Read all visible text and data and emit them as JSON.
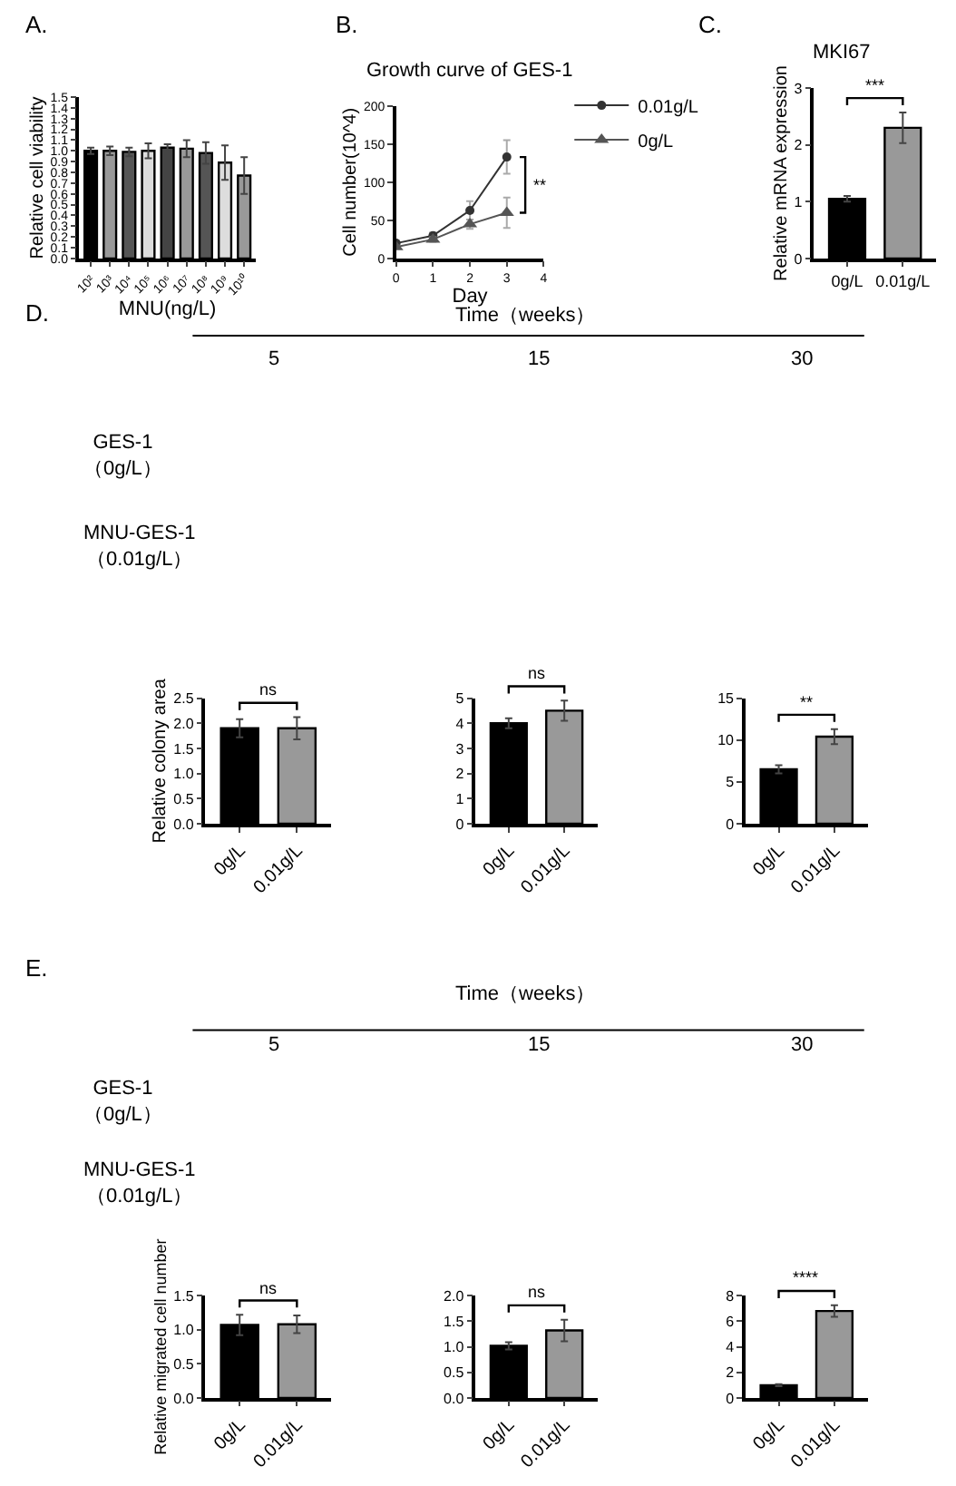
{
  "chart_data": [
    {
      "type": "bar",
      "xlabel": "MNU(ng/L)",
      "ylabel": "Relative cell viability",
      "categories": [
        "10²",
        "10³",
        "10⁴",
        "10⁵",
        "10⁶",
        "10⁷",
        "10⁸",
        "10⁹",
        "10¹⁰"
      ],
      "values": [
        1.0,
        1.0,
        0.99,
        1.0,
        1.03,
        1.02,
        0.98,
        0.89,
        0.77
      ],
      "errors": [
        0.03,
        0.04,
        0.04,
        0.07,
        0.03,
        0.08,
        0.1,
        0.16,
        0.17
      ],
      "colors": [
        "#000000",
        "#999999",
        "#555555",
        "#dddddd",
        "#444444",
        "#999999",
        "#555555",
        "#dddddd",
        "#999999"
      ],
      "ylim": [
        0,
        1.5
      ],
      "yticks": [
        {
          "value": 0,
          "label": "0.0"
        },
        {
          "value": 0.1,
          "label": "0.1"
        },
        {
          "value": 0.2,
          "label": "0.2"
        },
        {
          "value": 0.3,
          "label": "0.3"
        },
        {
          "value": 0.4,
          "label": "0.4"
        },
        {
          "value": 0.5,
          "label": "0.5"
        },
        {
          "value": 0.6,
          "label": "0.6"
        },
        {
          "value": 0.7,
          "label": "0.7"
        },
        {
          "value": 0.8,
          "label": "0.8"
        },
        {
          "value": 0.9,
          "label": "0.9"
        },
        {
          "value": 1,
          "label": "1.0"
        },
        {
          "value": 1.1,
          "label": "1.1"
        },
        {
          "value": 1.2,
          "label": "1.2"
        },
        {
          "value": 1.3,
          "label": "1.3"
        },
        {
          "value": 1.4,
          "label": "1.4"
        },
        {
          "value": 1.5,
          "label": "1.5"
        }
      ],
      "annotations": [
        "A."
      ]
    },
    {
      "type": "line",
      "title": "Growth curve of GES-1",
      "xlabel": "Day",
      "ylabel": "Cell number(10^4)",
      "x": [
        0,
        1,
        2,
        3
      ],
      "series": [
        {
          "name": "0.01g/L",
          "color": "#333333",
          "marker": "circle",
          "values": [
            20,
            30,
            63,
            133
          ],
          "errors": [
            3,
            4,
            12,
            22
          ]
        },
        {
          "name": "0g/L",
          "color": "#555555",
          "marker": "triangle",
          "values": [
            15,
            25,
            45,
            60
          ],
          "errors": [
            2,
            3,
            6,
            20
          ]
        }
      ],
      "xlim": [
        0,
        4
      ],
      "xticks": [
        0,
        1,
        2,
        3,
        4
      ],
      "ylim": [
        0,
        200
      ],
      "yticks": [
        0,
        50,
        100,
        150,
        200
      ],
      "legend": "top right",
      "annotations": [
        "B.",
        "**"
      ]
    },
    {
      "type": "bar",
      "title": "MKI67",
      "ylabel": "Relative mRNA expression",
      "categories": [
        "0g/L",
        "0.01g/L"
      ],
      "values": [
        1.05,
        2.3
      ],
      "errors": [
        0.05,
        0.27
      ],
      "colors": [
        "#000000",
        "#999999"
      ],
      "ylim": [
        0,
        3
      ],
      "yticks": [
        0,
        1,
        2,
        3
      ],
      "annotations": [
        "C.",
        "***"
      ]
    },
    {
      "type": "bar",
      "ylabel": "Relative colony area",
      "categories": [
        "0g/L",
        "0.01g/L"
      ],
      "values": [
        1.9,
        1.9
      ],
      "errors": [
        0.18,
        0.22
      ],
      "colors": [
        "#000000",
        "#999999"
      ],
      "ylim": [
        0,
        2.5
      ],
      "yticks": [
        {
          "value": 0,
          "label": "0.0"
        },
        {
          "value": 0.5,
          "label": "0.5"
        },
        {
          "value": 1,
          "label": "1.0"
        },
        {
          "value": 1.5,
          "label": "1.5"
        },
        {
          "value": 2,
          "label": "2.0"
        },
        {
          "value": 2.5,
          "label": "2.5"
        }
      ],
      "annotations": [
        "D.",
        "Time（weeks）",
        "5",
        "15",
        "30",
        "GES-1\n（0g/L）",
        "MNU-GES-1\n（0.01g/L）",
        "ns"
      ]
    },
    {
      "type": "bar",
      "categories": [
        "0g/L",
        "0.01g/L"
      ],
      "values": [
        4.0,
        4.5
      ],
      "errors": [
        0.2,
        0.4
      ],
      "colors": [
        "#000000",
        "#999999"
      ],
      "ylim": [
        0,
        5
      ],
      "yticks": [
        0,
        1,
        2,
        3,
        4,
        5
      ],
      "annotations": [
        "ns"
      ]
    },
    {
      "type": "bar",
      "categories": [
        "0g/L",
        "0.01g/L"
      ],
      "values": [
        6.5,
        10.4
      ],
      "errors": [
        0.5,
        0.9
      ],
      "colors": [
        "#000000",
        "#999999"
      ],
      "ylim": [
        0,
        15
      ],
      "yticks": [
        0,
        5,
        10,
        15
      ],
      "annotations": [
        "**"
      ]
    },
    {
      "type": "bar",
      "ylabel": "Relative migrated cell number",
      "categories": [
        "0g/L",
        "0.01g/L"
      ],
      "values": [
        1.07,
        1.08
      ],
      "errors": [
        0.15,
        0.13
      ],
      "colors": [
        "#000000",
        "#999999"
      ],
      "ylim": [
        0,
        1.5
      ],
      "yticks": [
        {
          "value": 0,
          "label": "0.0"
        },
        {
          "value": 0.5,
          "label": "0.5"
        },
        {
          "value": 1,
          "label": "1.0"
        },
        {
          "value": 1.5,
          "label": "1.5"
        }
      ],
      "annotations": [
        "E.",
        "Time（weeks）",
        "5",
        "15",
        "30",
        "GES-1\n（0g/L）",
        "MNU-GES-1\n（0.01g/L）",
        "ns"
      ]
    },
    {
      "type": "bar",
      "categories": [
        "0g/L",
        "0.01g/L"
      ],
      "values": [
        1.02,
        1.32
      ],
      "errors": [
        0.07,
        0.21
      ],
      "colors": [
        "#000000",
        "#999999"
      ],
      "ylim": [
        0,
        2
      ],
      "yticks": [
        {
          "value": 0,
          "label": "0.0"
        },
        {
          "value": 0.5,
          "label": "0.5"
        },
        {
          "value": 1,
          "label": "1.0"
        },
        {
          "value": 1.5,
          "label": "1.5"
        },
        {
          "value": 2,
          "label": "2.0"
        }
      ],
      "annotations": [
        "ns"
      ]
    },
    {
      "type": "bar",
      "categories": [
        "0g/L",
        "0.01g/L"
      ],
      "values": [
        1.0,
        6.8
      ],
      "errors": [
        0.08,
        0.45
      ],
      "colors": [
        "#000000",
        "#999999"
      ],
      "ylim": [
        0,
        8
      ],
      "yticks": [
        0,
        2,
        4,
        6,
        8
      ],
      "annotations": [
        "****"
      ]
    }
  ]
}
